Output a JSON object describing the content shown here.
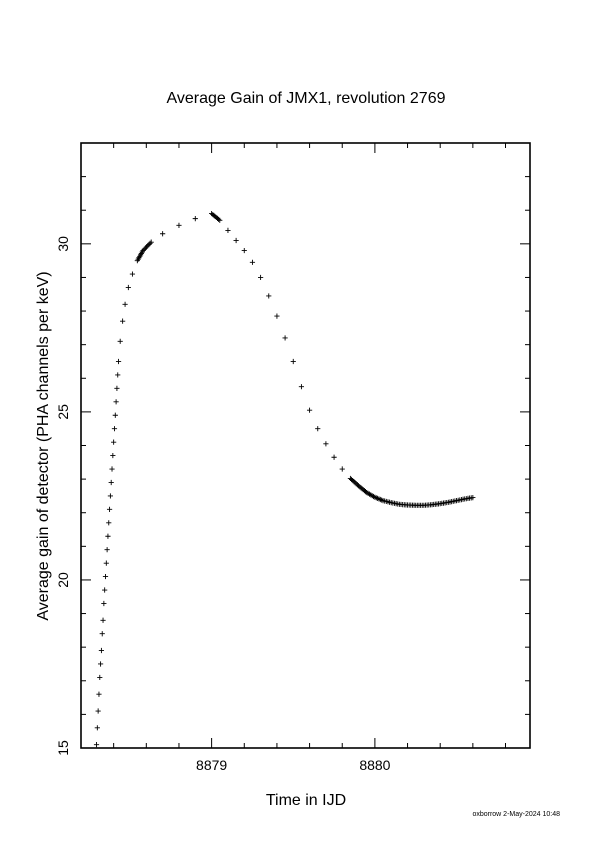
{
  "chart_data": {
    "type": "scatter",
    "title": "Average Gain of JMX1, revolution 2769",
    "xlabel": "Time in IJD",
    "ylabel": "Average gain of detector (PHA channels per keV)",
    "xlim": [
      8878.2,
      8880.95
    ],
    "ylim": [
      15,
      33
    ],
    "xticks": [
      8879,
      8880
    ],
    "xtick_labels": [
      "8879",
      "8880"
    ],
    "yticks": [
      15,
      20,
      25,
      30
    ],
    "ytick_labels": [
      "15",
      "20",
      "25",
      "30"
    ],
    "grid": false,
    "legend": "none",
    "marker": "+",
    "color": "#000000",
    "series": [
      {
        "points": [
          [
            8878.295,
            15.1
          ],
          [
            8878.3,
            15.6
          ],
          [
            8878.305,
            16.1
          ],
          [
            8878.31,
            16.6
          ],
          [
            8878.315,
            17.1
          ],
          [
            8878.32,
            17.5
          ],
          [
            8878.325,
            17.9
          ],
          [
            8878.33,
            18.4
          ],
          [
            8878.335,
            18.8
          ],
          [
            8878.34,
            19.3
          ],
          [
            8878.345,
            19.7
          ],
          [
            8878.35,
            20.1
          ],
          [
            8878.355,
            20.5
          ],
          [
            8878.36,
            20.9
          ],
          [
            8878.365,
            21.3
          ],
          [
            8878.37,
            21.7
          ],
          [
            8878.375,
            22.1
          ],
          [
            8878.38,
            22.5
          ],
          [
            8878.385,
            22.9
          ],
          [
            8878.39,
            23.3
          ],
          [
            8878.395,
            23.7
          ],
          [
            8878.4,
            24.1
          ],
          [
            8878.405,
            24.5
          ],
          [
            8878.41,
            24.9
          ],
          [
            8878.415,
            25.3
          ],
          [
            8878.42,
            25.7
          ],
          [
            8878.425,
            26.1
          ],
          [
            8878.43,
            26.5
          ],
          [
            8878.44,
            27.1
          ],
          [
            8878.455,
            27.7
          ],
          [
            8878.47,
            28.2
          ],
          [
            8878.49,
            28.7
          ],
          [
            8878.515,
            29.1
          ],
          [
            8878.545,
            29.5
          ],
          [
            8878.58,
            29.8
          ],
          [
            8878.63,
            30.05
          ],
          [
            8878.7,
            30.3
          ],
          [
            8878.8,
            30.55
          ],
          [
            8878.9,
            30.75
          ],
          [
            8879.0,
            30.9
          ],
          [
            8879.05,
            30.7
          ],
          [
            8879.1,
            30.4
          ],
          [
            8879.15,
            30.1
          ],
          [
            8879.2,
            29.8
          ],
          [
            8879.25,
            29.45
          ],
          [
            8879.3,
            29.0
          ],
          [
            8879.35,
            28.45
          ],
          [
            8879.4,
            27.85
          ],
          [
            8879.45,
            27.2
          ],
          [
            8879.5,
            26.5
          ],
          [
            8879.55,
            25.75
          ],
          [
            8879.6,
            25.05
          ],
          [
            8879.65,
            24.5
          ],
          [
            8879.7,
            24.05
          ],
          [
            8879.75,
            23.65
          ],
          [
            8879.8,
            23.3
          ],
          [
            8879.85,
            23.02
          ],
          [
            8879.9,
            22.8
          ],
          [
            8879.95,
            22.6
          ],
          [
            8880.0,
            22.46
          ],
          [
            8880.05,
            22.36
          ],
          [
            8880.1,
            22.3
          ],
          [
            8880.15,
            22.25
          ],
          [
            8880.2,
            22.23
          ],
          [
            8880.25,
            22.22
          ],
          [
            8880.3,
            22.22
          ],
          [
            8880.35,
            22.24
          ],
          [
            8880.4,
            22.27
          ],
          [
            8880.45,
            22.31
          ],
          [
            8880.5,
            22.36
          ],
          [
            8880.55,
            22.41
          ],
          [
            8880.6,
            22.45
          ]
        ]
      }
    ]
  },
  "footer": {
    "credit": "oxborrow 2-May-2024 10:48"
  }
}
